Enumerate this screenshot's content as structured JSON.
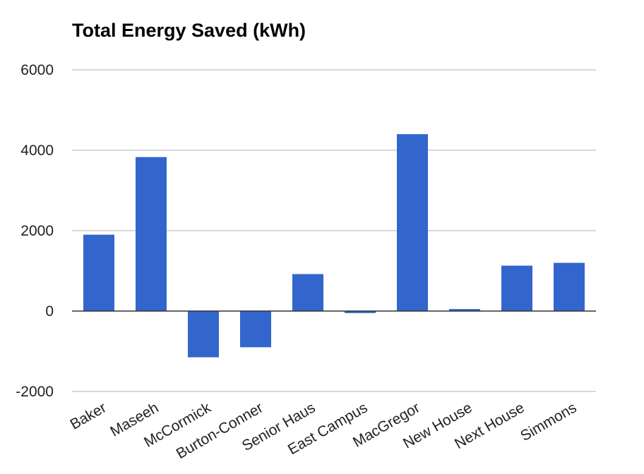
{
  "chart_data": {
    "type": "bar",
    "title": "Total Energy Saved (kWh)",
    "xlabel": "",
    "ylabel": "",
    "categories": [
      "Baker",
      "Maseeh",
      "McCormick",
      "Burton-Conner",
      "Senior Haus",
      "East Campus",
      "MacGregor",
      "New House",
      "Next House",
      "Simmons"
    ],
    "values": [
      1900,
      3830,
      -1150,
      -900,
      920,
      -50,
      4400,
      50,
      1130,
      1200
    ],
    "ylim": [
      -2000,
      6000
    ],
    "yticks": [
      "-2000",
      "0",
      "2000",
      "4000",
      "6000"
    ],
    "ytick_values": [
      -2000,
      0,
      2000,
      4000,
      6000
    ],
    "grid": true,
    "legend": "none",
    "colors": {
      "bar": "#3366cc",
      "grid": "#cccccc",
      "baseline": "#333333"
    }
  }
}
